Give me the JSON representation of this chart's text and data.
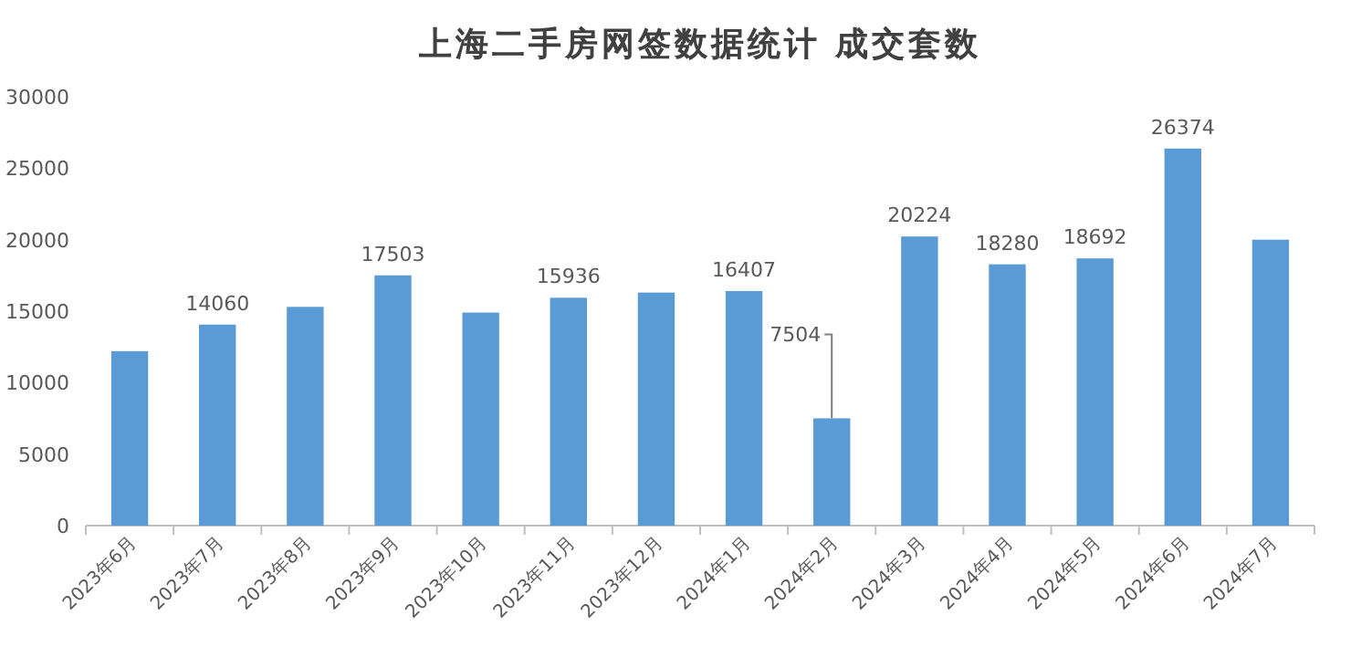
{
  "chart_data": {
    "type": "bar",
    "title": "上海二手房网签数据统计 成交套数",
    "categories": [
      "2023年6月",
      "2023年7月",
      "2023年8月",
      "2023年9月",
      "2023年10月",
      "2023年11月",
      "2023年12月",
      "2024年1月",
      "2024年2月",
      "2024年3月",
      "2024年4月",
      "2024年5月",
      "2024年6月",
      "2024年7月"
    ],
    "values": [
      12200,
      14060,
      15300,
      17503,
      14900,
      15936,
      16300,
      16407,
      7504,
      20224,
      18280,
      18692,
      26374,
      20000
    ],
    "value_labels": [
      null,
      "14060",
      null,
      "17503",
      null,
      "15936",
      null,
      "16407",
      "7504",
      "20224",
      "18280",
      "18692",
      "26374",
      null
    ],
    "color": "#5b9bd5",
    "ylim": [
      0,
      30000
    ],
    "yticks": [
      0,
      5000,
      10000,
      15000,
      20000,
      25000,
      30000
    ],
    "grid": false
  }
}
